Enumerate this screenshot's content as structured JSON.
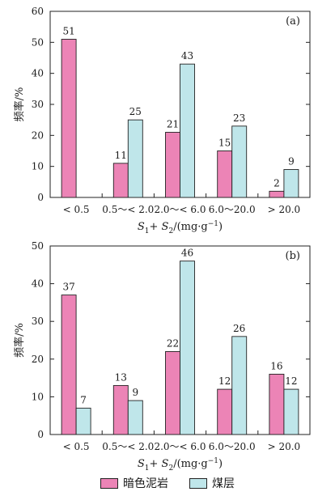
{
  "colors": {
    "mudstone": "#ec84b6",
    "coal": "#bfe6ea",
    "axis": "#222222"
  },
  "legend": {
    "mudstone_label": "暗色泥岩",
    "coal_label": "煤层"
  },
  "chart_data": [
    {
      "type": "bar",
      "panel_label": "(a)",
      "ylabel": "频率/%",
      "xlabel_main": "S",
      "xlabel_sub1": "1",
      "xlabel_mid": "+ S",
      "xlabel_sub2": "2",
      "xlabel_unit": "/(mg·g",
      "xlabel_sup": "−1",
      "xlabel_end": ")",
      "categories": [
        "< 0.5",
        "0.5～< 2.0",
        "2.0～< 6.0",
        "6.0～20.0",
        "> 20.0"
      ],
      "ylim": [
        0,
        60
      ],
      "yticks": [
        0,
        10,
        20,
        30,
        40,
        50,
        60
      ],
      "series": [
        {
          "name": "暗色泥岩",
          "values": [
            51,
            11,
            21,
            15,
            2
          ]
        },
        {
          "name": "煤层",
          "values": [
            null,
            25,
            43,
            23,
            9
          ]
        }
      ]
    },
    {
      "type": "bar",
      "panel_label": "(b)",
      "ylabel": "频率/%",
      "xlabel_main": "S",
      "xlabel_sub1": "1",
      "xlabel_mid": "+ S",
      "xlabel_sub2": "2",
      "xlabel_unit": "/(mg·g",
      "xlabel_sup": "−1",
      "xlabel_end": ")",
      "categories": [
        "< 0.5",
        "0.5～< 2.0",
        "2.0～< 6.0",
        "6.0～20.0",
        "> 20.0"
      ],
      "ylim": [
        0,
        50
      ],
      "yticks": [
        0,
        10,
        20,
        30,
        40,
        50
      ],
      "series": [
        {
          "name": "暗色泥岩",
          "values": [
            37,
            13,
            22,
            12,
            16
          ]
        },
        {
          "name": "煤层",
          "values": [
            7,
            9,
            46,
            26,
            12
          ]
        }
      ]
    }
  ]
}
